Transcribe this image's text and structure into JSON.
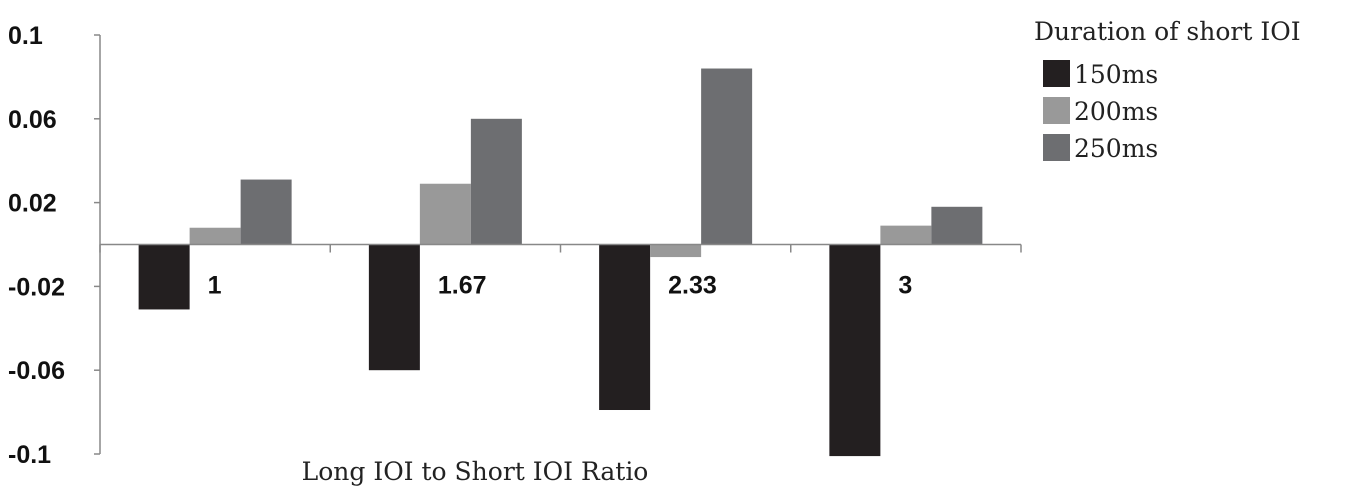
{
  "chart_data": {
    "type": "bar",
    "title": "",
    "xlabel": "Long IOI to Short IOI Ratio",
    "ylabel": "",
    "categories": [
      "1",
      "1.67",
      "2.33",
      "3"
    ],
    "series": [
      {
        "name": "150ms",
        "values": [
          -0.031,
          -0.06,
          -0.079,
          -0.101
        ],
        "color": "#231f20"
      },
      {
        "name": "200ms",
        "values": [
          0.008,
          0.029,
          -0.006,
          0.009
        ],
        "color": "#999999"
      },
      {
        "name": "250ms",
        "values": [
          0.031,
          0.06,
          0.084,
          0.018
        ],
        "color": "#6d6e71"
      }
    ],
    "ylim": [
      -0.1,
      0.1
    ],
    "yticks": [
      "0.1",
      "0.06",
      "0.02",
      "-0.02",
      "-0.06",
      "-0.1"
    ],
    "ytick_values": [
      0.1,
      0.06,
      0.02,
      -0.02,
      -0.06,
      -0.1
    ],
    "grid": false,
    "legend": {
      "title": "Duration of short IOI",
      "placement": "top-right"
    }
  }
}
